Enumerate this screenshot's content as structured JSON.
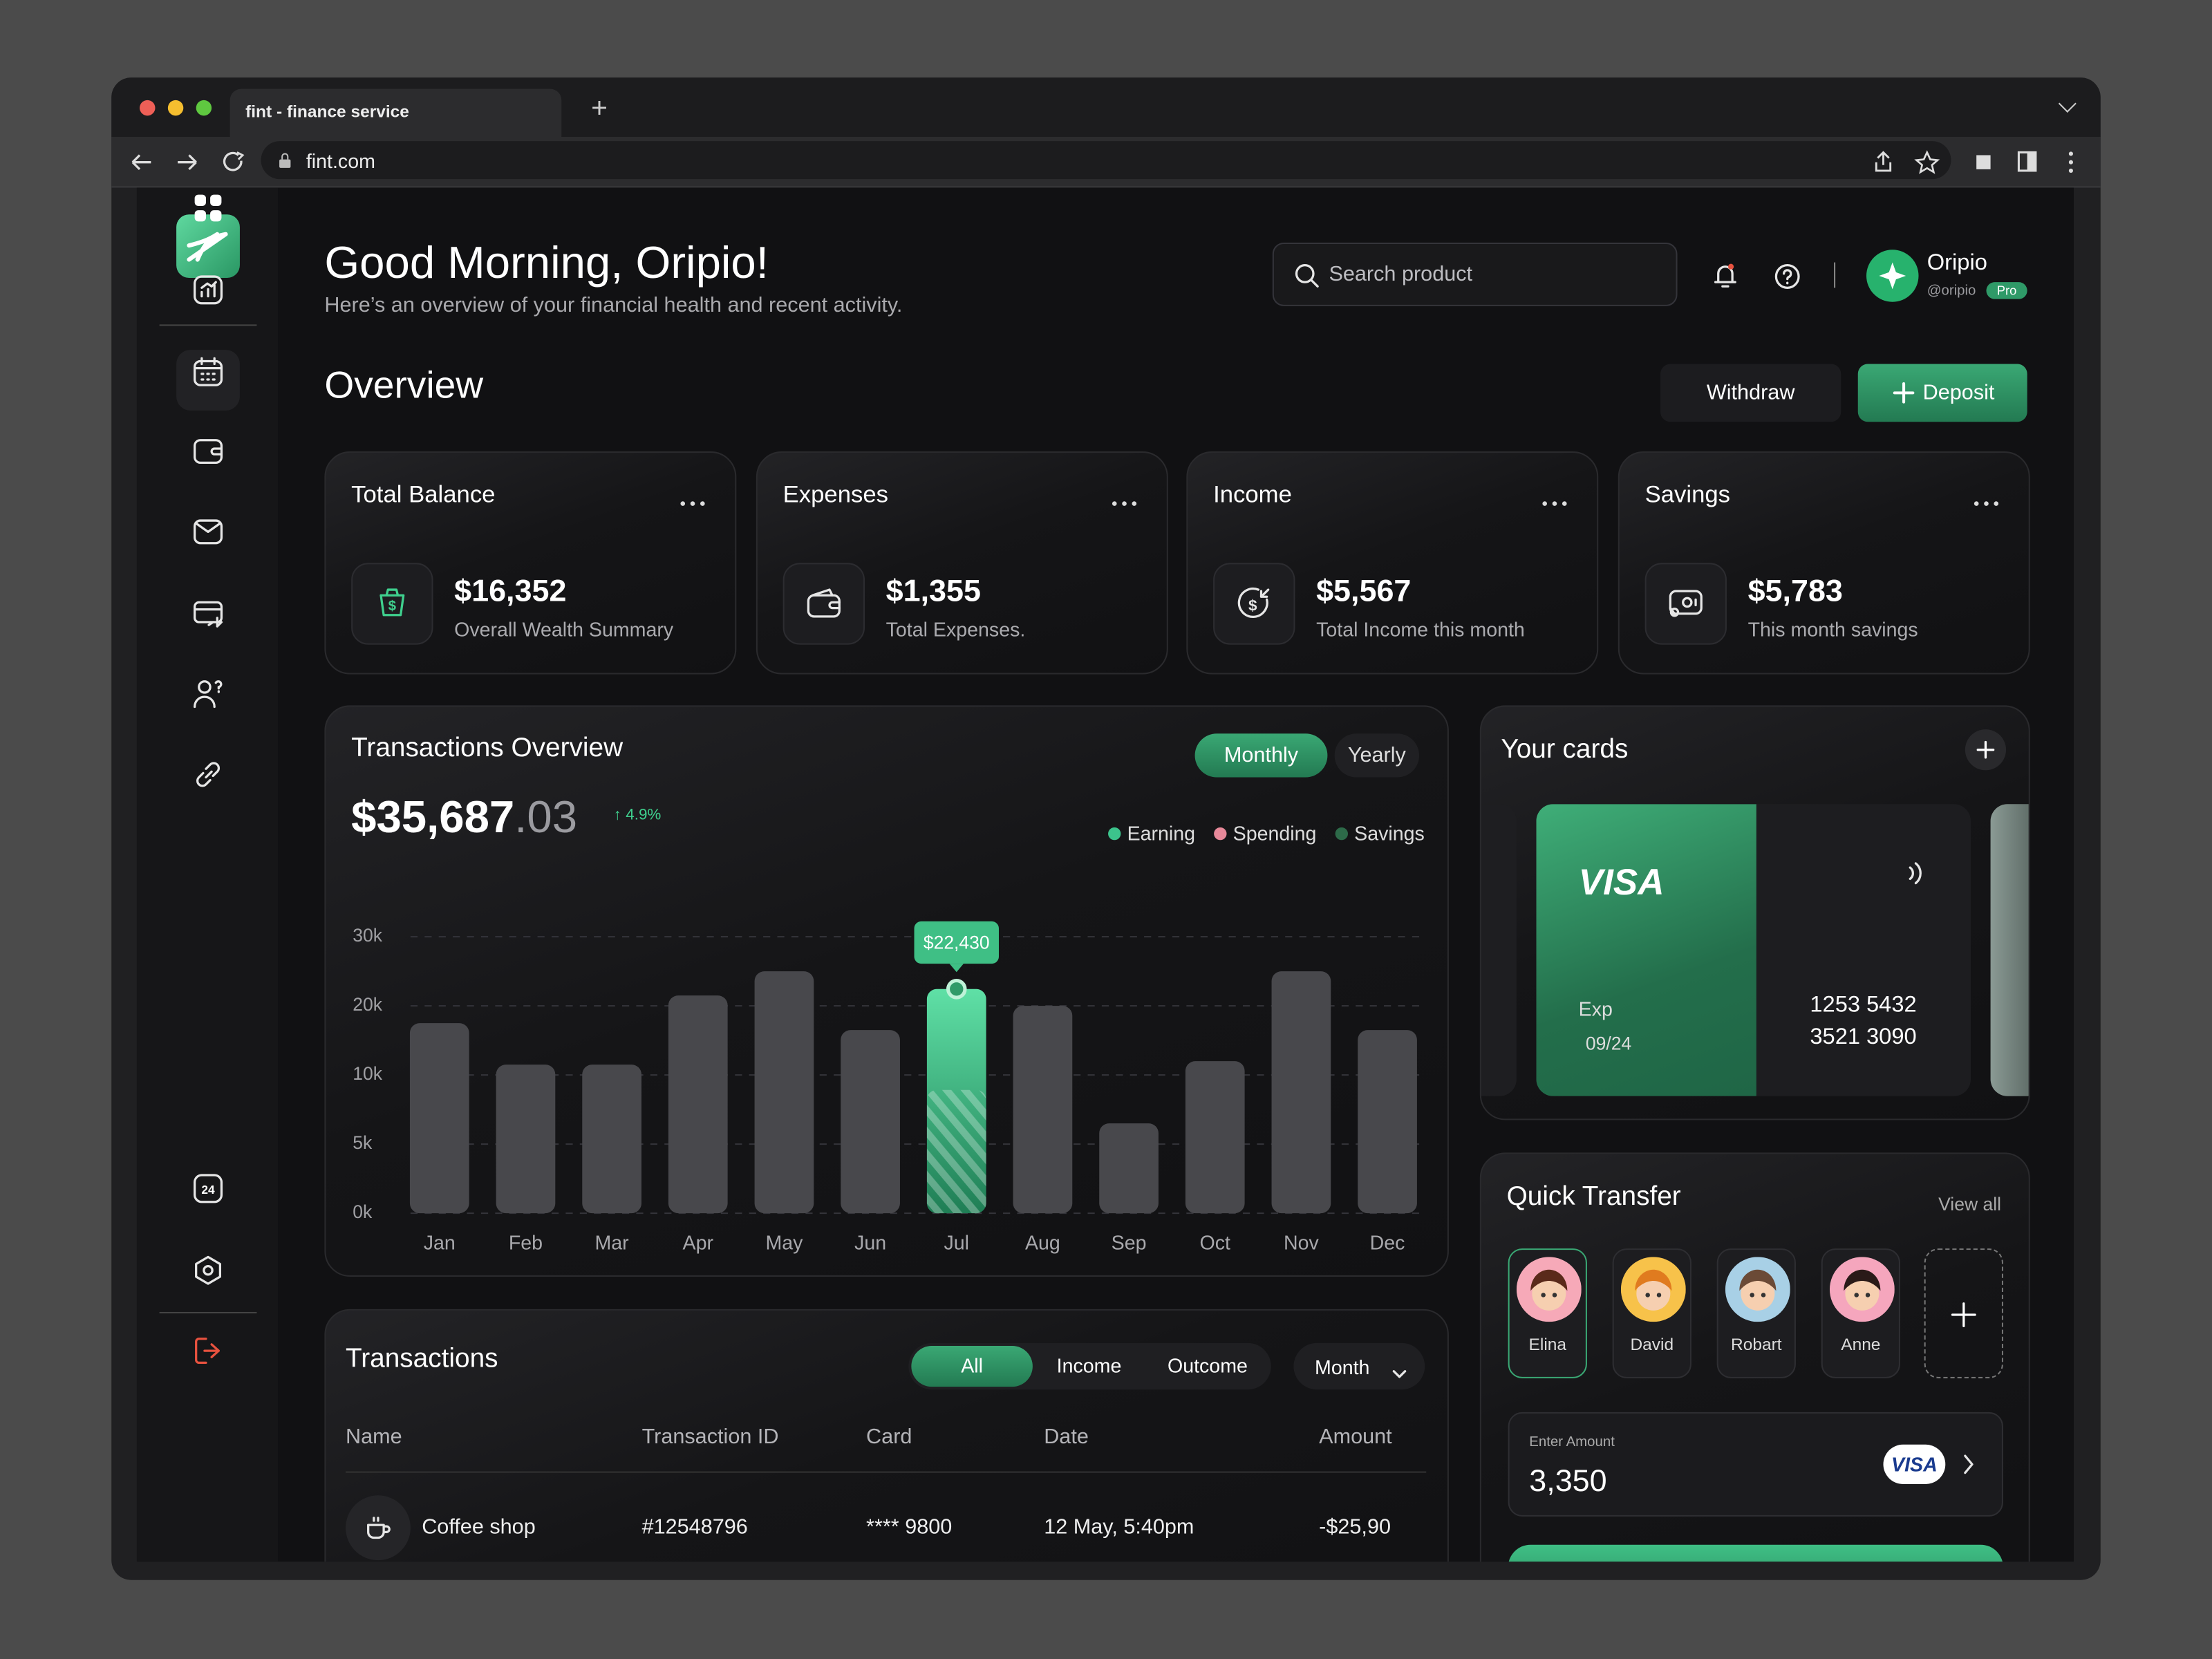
{
  "browser": {
    "tab_title": "fint - finance service",
    "url": "fint.com"
  },
  "header": {
    "greeting": "Good Morning, Oripio!",
    "subtitle": "Here’s an overview of your financial health and recent activity.",
    "search_placeholder": "Search product",
    "user": {
      "name": "Oripio",
      "handle": "@oripio",
      "badge": "Pro"
    }
  },
  "overview": {
    "title": "Overview",
    "withdraw": "Withdraw",
    "deposit": "Deposit"
  },
  "stats": [
    {
      "title": "Total Balance",
      "value": "$16,352",
      "caption": "Overall Wealth Summary"
    },
    {
      "title": "Expenses",
      "value": "$1,355",
      "caption": "Total Expenses."
    },
    {
      "title": "Income",
      "value": "$5,567",
      "caption": "Total Income this month"
    },
    {
      "title": "Savings",
      "value": "$5,783",
      "caption": "This month savings"
    }
  ],
  "chart_data": {
    "type": "bar",
    "title": "Transactions Overview",
    "total": "$35,687",
    "total_cents": ".03",
    "change": "↑ 4.9%",
    "periods": [
      "Monthly",
      "Yearly"
    ],
    "legend": [
      {
        "name": "Earning",
        "color": "#3cc48c"
      },
      {
        "name": "Spending",
        "color": "#e8899a"
      },
      {
        "name": "Savings",
        "color": "#2d6a49"
      }
    ],
    "categories": [
      "Jan",
      "Feb",
      "Mar",
      "Apr",
      "May",
      "Jun",
      "Jul",
      "Aug",
      "Sep",
      "Oct",
      "Nov",
      "Dec"
    ],
    "values": [
      17500,
      11500,
      11500,
      21500,
      25000,
      16500,
      22430,
      20000,
      6500,
      12000,
      25000,
      16500
    ],
    "value_labels": [
      null,
      null,
      null,
      null,
      null,
      null,
      "$22,430",
      null,
      null,
      null,
      null,
      null
    ],
    "color": "#48484c",
    "highlight_color": "#3fbf85",
    "ylim": [
      0,
      30000
    ],
    "yticks": [
      {
        "value": 0,
        "label": "0k"
      },
      {
        "value": 5000,
        "label": "5k"
      },
      {
        "value": 10000,
        "label": "10k"
      },
      {
        "value": 20000,
        "label": "20k"
      },
      {
        "value": 30000,
        "label": "30k"
      }
    ],
    "grid": true
  },
  "cards": {
    "title": "Your cards",
    "brand": "VISA",
    "exp_label": "Exp",
    "exp": "09/24",
    "number": [
      "1253",
      "5432",
      "3521",
      "3090"
    ]
  },
  "quick_transfer": {
    "title": "Quick Transfer",
    "view_all": "View all",
    "contacts": [
      "Elina",
      "David",
      "Robart",
      "Anne"
    ],
    "amount_label": "Enter Amount",
    "amount": "3,350",
    "card_brand": "VISA"
  },
  "transactions": {
    "title": "Transactions",
    "filters": [
      "All",
      "Income",
      "Outcome"
    ],
    "period": "Month",
    "columns": [
      "Name",
      "Transaction ID",
      "Card",
      "Date",
      "Amount"
    ],
    "rows": [
      [
        "Coffee shop",
        "#12548796",
        "**** 9800",
        "12 May, 5:40pm",
        "-$25,90"
      ]
    ]
  }
}
